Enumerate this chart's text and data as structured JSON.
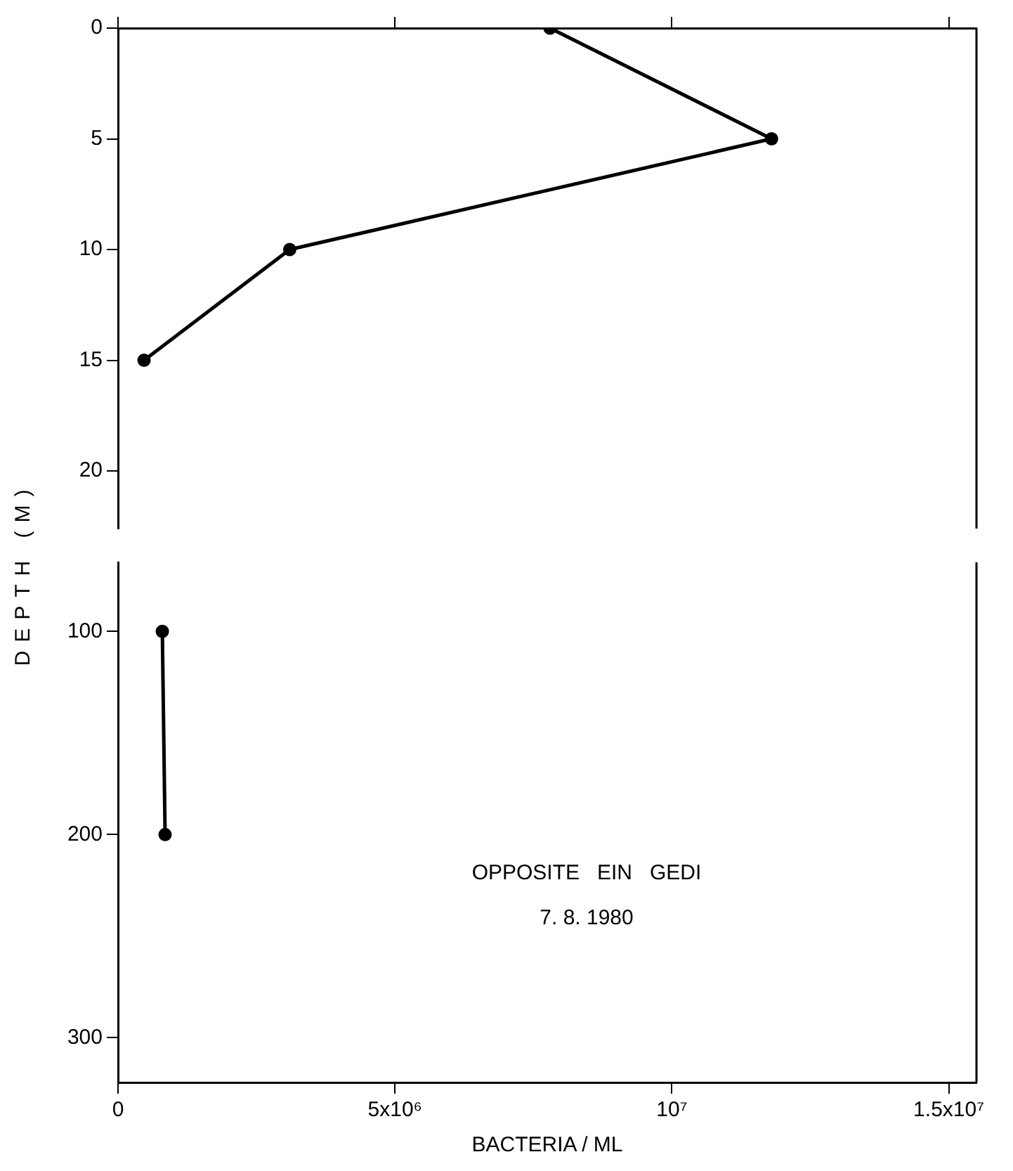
{
  "chart_data": [
    {
      "type": "line",
      "ylabel": "DEPTH (M)",
      "x": [
        7800000,
        11800000,
        3100000,
        470000
      ],
      "values": [
        0,
        5,
        10,
        15
      ],
      "color": "#000000",
      "marker": "circle",
      "xlim": [
        0,
        15500000
      ],
      "xticks": [
        0,
        5000000,
        10000000,
        15000000
      ],
      "ylim": [
        22.6,
        0
      ],
      "yticks": [
        0,
        5,
        10,
        15,
        20
      ],
      "tick_labels": "y"
    },
    {
      "type": "line",
      "xlabel": "BACTERIA / ML",
      "x": [
        800000,
        850000
      ],
      "values": [
        100,
        200
      ],
      "color": "#000000",
      "marker": "circle",
      "xlim": [
        0,
        15500000
      ],
      "xticks": [
        0,
        {
          "value": 5000000,
          "label": "5x10⁶"
        },
        {
          "value": 10000000,
          "label": "10⁷"
        },
        {
          "value": 15000000,
          "label": "1.5x10⁷"
        }
      ],
      "ylim": [
        322,
        66
      ],
      "yticks": [
        100,
        200,
        300
      ],
      "annotations": [
        "OPPOSITE   EIN   GEDI",
        "7. 8. 1980"
      ]
    }
  ]
}
